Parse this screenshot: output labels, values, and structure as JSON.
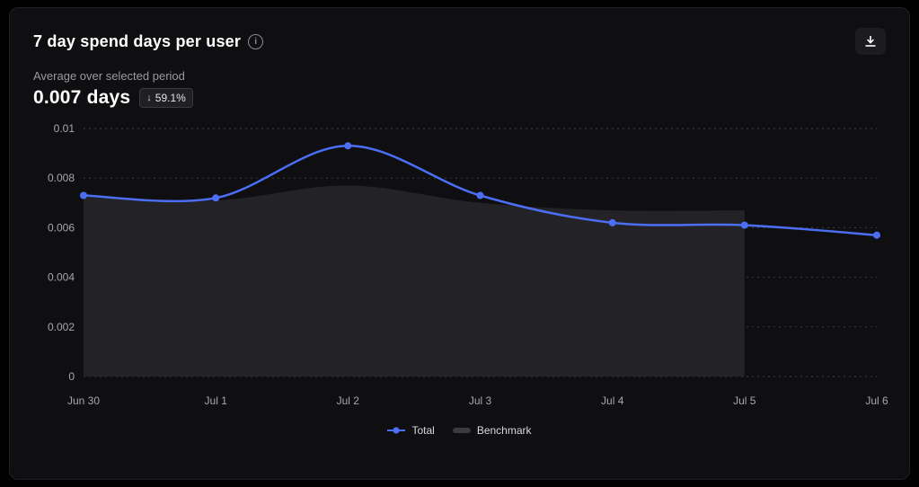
{
  "header": {
    "title": "7 day spend days per user",
    "subtitle": "Average over selected period"
  },
  "metric": {
    "value": "0.007 days",
    "arrow": "↓",
    "change": "59.1%"
  },
  "legend": [
    {
      "label": "Total"
    },
    {
      "label": "Benchmark"
    }
  ],
  "colors": {
    "background": "#000000",
    "card": "#0f0f11",
    "accent": "#4c6ef5",
    "benchmark_fill": "#232327",
    "grid": "#3f3f46",
    "text_primary": "#ffffff",
    "text_secondary": "#9a9aa1"
  },
  "chart_data": {
    "type": "line",
    "title": "7 day spend days per user",
    "categories": [
      "Jun 30",
      "Jul 1",
      "Jul 2",
      "Jul 3",
      "Jul 4",
      "Jul 5",
      "Jul 6"
    ],
    "series": [
      {
        "name": "Total",
        "kind": "line",
        "color": "#4c6ef5",
        "values": [
          0.0073,
          0.0072,
          0.0093,
          0.0073,
          0.0062,
          0.0061,
          0.0057
        ]
      },
      {
        "name": "Benchmark",
        "kind": "area",
        "color": "#232327",
        "values": [
          0.0073,
          0.0071,
          0.0077,
          0.007,
          0.0067,
          0.0067,
          null
        ]
      }
    ],
    "xlabel": "",
    "ylabel": "",
    "ylim": [
      0,
      0.01
    ],
    "yticks": [
      0,
      0.002,
      0.004,
      0.006,
      0.008,
      0.01
    ],
    "ytick_labels": [
      "0",
      "0.002",
      "0.004",
      "0.006",
      "0.008",
      "0.01"
    ],
    "grid": "dashed-horizontal",
    "legend_position": "bottom"
  }
}
